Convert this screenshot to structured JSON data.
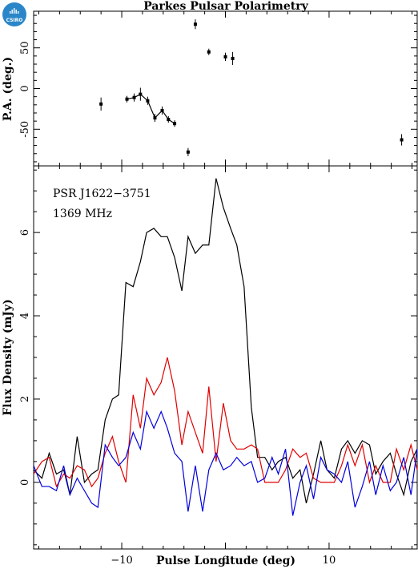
{
  "logo": {
    "text": "CSIRO",
    "color": "#2a86c8"
  },
  "chart_data": [
    {
      "type": "scatter",
      "title": "Parkes Pulsar Polarimetry",
      "ylabel": "P.A. (deg.)",
      "xlim": [
        -18.5,
        18.5
      ],
      "ylim": [
        -95,
        95
      ],
      "yticks": [
        -50,
        0,
        50
      ],
      "points": [
        {
          "x": -12.0,
          "y": -19,
          "err": 8
        },
        {
          "x": -9.5,
          "y": -13,
          "err": 4
        },
        {
          "x": -8.8,
          "y": -11,
          "err": 5
        },
        {
          "x": -8.2,
          "y": -7,
          "err": 8
        },
        {
          "x": -7.5,
          "y": -15,
          "err": 5
        },
        {
          "x": -6.8,
          "y": -36,
          "err": 5
        },
        {
          "x": -6.1,
          "y": -27,
          "err": 5
        },
        {
          "x": -5.5,
          "y": -38,
          "err": 4
        },
        {
          "x": -4.9,
          "y": -43,
          "err": 4
        },
        {
          "x": -3.6,
          "y": -78,
          "err": 5
        },
        {
          "x": -2.9,
          "y": 79,
          "err": 6
        },
        {
          "x": -1.6,
          "y": 45,
          "err": 4
        },
        {
          "x": 0.0,
          "y": 39,
          "err": 5
        },
        {
          "x": 0.7,
          "y": 37,
          "err": 8
        },
        {
          "x": 17.0,
          "y": -63,
          "err": 7
        }
      ],
      "connected": [
        1,
        2,
        3,
        4,
        5,
        6,
        7,
        8
      ]
    },
    {
      "type": "line",
      "ylabel": "Flux Density (mJy)",
      "xlabel": "Pulse Longitude (deg)",
      "annotations": [
        "PSR J1622−3751",
        "1369 MHz"
      ],
      "xlim": [
        -18.5,
        18.5
      ],
      "ylim": [
        -1.6,
        7.6
      ],
      "xticks": [
        -10,
        0,
        10
      ],
      "yticks": [
        0,
        2,
        4,
        6
      ],
      "x": [
        -18.5,
        -17.7,
        -17.0,
        -16.3,
        -15.6,
        -15.0,
        -14.3,
        -13.6,
        -12.9,
        -12.3,
        -11.6,
        -10.9,
        -10.3,
        -9.6,
        -8.9,
        -8.2,
        -7.6,
        -6.9,
        -6.2,
        -5.6,
        -4.9,
        -4.2,
        -3.6,
        -2.9,
        -2.2,
        -1.6,
        -0.9,
        -0.2,
        0.5,
        1.1,
        1.8,
        2.5,
        3.1,
        3.8,
        4.5,
        5.1,
        5.8,
        6.5,
        7.2,
        7.8,
        8.5,
        9.2,
        9.8,
        10.5,
        11.2,
        11.8,
        12.5,
        13.2,
        13.9,
        14.5,
        15.2,
        15.9,
        16.5,
        17.2,
        17.9,
        18.5
      ],
      "series": [
        {
          "color": "#000000",
          "values": [
            0.3,
            0.1,
            0.7,
            0.2,
            0.3,
            -0.3,
            1.1,
            0.0,
            0.2,
            0.3,
            1.5,
            2.0,
            2.1,
            4.8,
            4.7,
            5.3,
            6.0,
            6.1,
            5.9,
            5.9,
            5.4,
            4.6,
            5.9,
            5.5,
            5.7,
            5.7,
            7.3,
            6.6,
            6.1,
            5.7,
            4.7,
            1.8,
            0.6,
            0.6,
            0.3,
            0.5,
            0.6,
            0.1,
            0.3,
            -0.5,
            0.2,
            1.0,
            0.3,
            0.1,
            0.8,
            1.0,
            0.7,
            1.0,
            0.9,
            0.2,
            0.5,
            0.7,
            0.2,
            -0.3,
            0.5,
            0.8
          ]
        },
        {
          "color": "#e00000",
          "values": [
            0.2,
            0.5,
            0.6,
            -0.1,
            0.2,
            0.1,
            0.4,
            0.3,
            -0.1,
            0.1,
            0.7,
            1.1,
            0.5,
            0.0,
            2.1,
            1.3,
            2.5,
            2.1,
            2.4,
            3.0,
            2.2,
            0.9,
            1.7,
            1.2,
            0.7,
            2.3,
            0.5,
            1.9,
            1.0,
            0.8,
            0.8,
            0.9,
            0.8,
            0.0,
            0.0,
            0.0,
            0.3,
            0.8,
            0.6,
            0.7,
            0.1,
            0.0,
            0.0,
            0.0,
            0.4,
            0.9,
            0.4,
            0.9,
            0.0,
            0.4,
            0.0,
            0.0,
            0.8,
            0.3,
            0.9,
            0.3
          ]
        },
        {
          "color": "#0000dd",
          "values": [
            0.4,
            -0.1,
            -0.1,
            -0.2,
            0.4,
            -0.3,
            0.1,
            -0.2,
            -0.5,
            -0.6,
            0.9,
            0.6,
            0.4,
            0.6,
            1.2,
            0.8,
            1.7,
            1.3,
            1.7,
            1.3,
            0.7,
            0.5,
            -0.7,
            0.4,
            -0.7,
            0.3,
            0.7,
            0.3,
            0.4,
            0.6,
            0.4,
            0.5,
            0.0,
            0.1,
            0.6,
            0.2,
            0.8,
            -0.8,
            0.0,
            0.4,
            -0.4,
            0.6,
            0.3,
            0.2,
            0.0,
            0.5,
            -0.6,
            -0.1,
            0.5,
            -0.3,
            0.4,
            -0.2,
            0.0,
            0.6,
            -0.3,
            0.8
          ]
        }
      ]
    }
  ]
}
